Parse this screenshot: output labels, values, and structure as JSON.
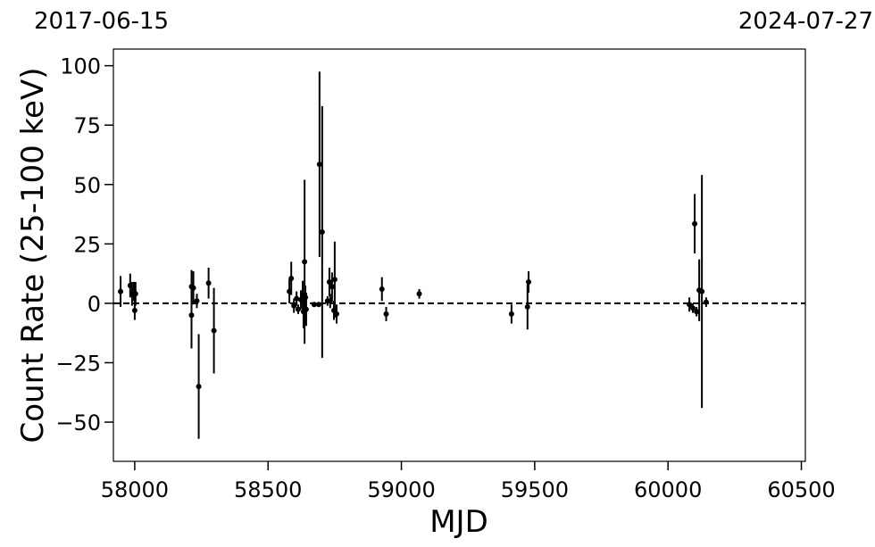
{
  "chart_data": {
    "type": "scatter",
    "xlabel": "MJD",
    "ylabel": "Count Rate (25-100 keV)",
    "annotations": [
      "2017-06-15",
      "2024-07-27"
    ],
    "xlim": [
      57920,
      60515
    ],
    "ylim": [
      -66.5,
      107
    ],
    "xticks": [
      58000,
      58500,
      59000,
      59500,
      60000,
      60500
    ],
    "yticks": [
      {
        "value": -50,
        "label": "−50"
      },
      {
        "value": -25,
        "label": "−25"
      },
      0,
      25,
      50,
      75,
      100
    ],
    "reference_line": 0,
    "color": "#000000",
    "x": [
      57947,
      57983,
      57990,
      57997,
      58000,
      58003,
      58213,
      58213,
      58220,
      58233,
      58240,
      58277,
      58297,
      58580,
      58587,
      58597,
      58607,
      58613,
      58623,
      58630,
      58633,
      58637,
      58640,
      58643,
      58673,
      58690,
      58693,
      58703,
      58723,
      58730,
      58733,
      58740,
      58747,
      58750,
      58757,
      58927,
      58943,
      59067,
      59413,
      59473,
      59477,
      60080,
      60093,
      60100,
      60107,
      60117,
      60127,
      60143
    ],
    "values": [
      5,
      7.5,
      4,
      5,
      -3,
      4,
      7,
      -5,
      6.5,
      1,
      -35,
      8.5,
      -11.5,
      5,
      10.5,
      -1,
      2,
      -2.5,
      1.5,
      3.5,
      -3.5,
      17.5,
      2.5,
      -2.5,
      -0.5,
      -0.5,
      58.5,
      30,
      1,
      9,
      1,
      7,
      -3,
      10,
      -4.5,
      6,
      -4.5,
      4,
      -4.5,
      -1.5,
      9,
      -0.5,
      -2,
      33.5,
      -3.5,
      5.5,
      5,
      0.5
    ],
    "errors": [
      6.5,
      5,
      5,
      4,
      4,
      5,
      7,
      14,
      7,
      3,
      22,
      6.5,
      18,
      5,
      7,
      3,
      3,
      2,
      4,
      6,
      7,
      34.5,
      5,
      7,
      1,
      1,
      39,
      53,
      2,
      6,
      3,
      6,
      4,
      16,
      4,
      5,
      3,
      2,
      4,
      9.5,
      4.5,
      3,
      2,
      12.5,
      2,
      13,
      49,
      2
    ]
  }
}
